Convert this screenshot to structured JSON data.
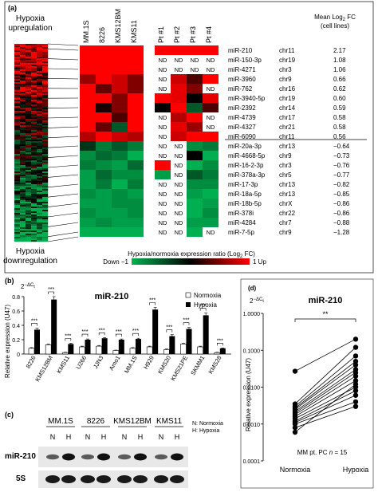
{
  "panel_a": {
    "label": "(a)",
    "up_label": [
      "Hypoxia",
      "upregulation"
    ],
    "down_label": [
      "Hypoxia",
      "downregulation"
    ],
    "columns": [
      "MM.1S",
      "8226",
      "KMS12BM",
      "KMS11",
      "Pt #1",
      "Pt #2",
      "Pt #3",
      "Pt #4"
    ],
    "fc_header": [
      "Mean Log",
      "2",
      " FC",
      "(cell lines)"
    ],
    "colorbar_title": "Hypoxia/normoxia expression ratio (Log",
    "colorbar_title_sub": "2",
    "colorbar_title_end": " FC)",
    "colorbar_min": "Down −1",
    "colorbar_max": "1 Up",
    "nd": "ND",
    "rows": [
      {
        "mirna": "miR-210",
        "chr": "chr11",
        "fc": "2.17",
        "cells": [
          1,
          1,
          1,
          1,
          1,
          1,
          1,
          1
        ]
      },
      {
        "mirna": "miR-150-3p",
        "chr": "chr19",
        "fc": "1.08",
        "cells": [
          1,
          1,
          1,
          1,
          "ND",
          "ND",
          "ND",
          "ND"
        ]
      },
      {
        "mirna": "miR-4271",
        "chr": "chr3",
        "fc": "1.06",
        "cells": [
          1,
          1,
          1,
          1,
          "ND",
          "ND",
          "ND",
          "ND"
        ]
      },
      {
        "mirna": "miR-3960",
        "chr": "chr9",
        "fc": "0.66",
        "cells": [
          0.6,
          1,
          0.8,
          0.5,
          "ND",
          0.8,
          0.3,
          1
        ]
      },
      {
        "mirna": "miR-762",
        "chr": "chr16",
        "fc": "0.62",
        "cells": [
          1,
          0.4,
          0.8,
          0.5,
          "ND",
          0.9,
          0.5,
          "ND"
        ]
      },
      {
        "mirna": "miR-3940-5p",
        "chr": "chr19",
        "fc": "0.60",
        "cells": [
          1,
          1,
          0.5,
          1,
          1,
          0.9,
          0,
          0.9
        ]
      },
      {
        "mirna": "miR-2392",
        "chr": "chr14",
        "fc": "0.59",
        "cells": [
          1,
          0.1,
          0.5,
          1,
          0,
          1,
          -0.5,
          0.3
        ]
      },
      {
        "mirna": "miR-4739",
        "chr": "chr17",
        "fc": "0.58",
        "cells": [
          1,
          1,
          0.3,
          1,
          "ND",
          0.7,
          1,
          "ND"
        ]
      },
      {
        "mirna": "miR-4327",
        "chr": "chr21",
        "fc": "0.58",
        "cells": [
          1,
          0.4,
          -0.5,
          1,
          "ND",
          0.9,
          0.6,
          "ND"
        ]
      },
      {
        "mirna": "miR-6090",
        "chr": "chr11",
        "fc": "0.56",
        "cells": [
          0.7,
          1,
          0.8,
          0.7,
          "ND",
          0.8,
          1,
          1
        ]
      },
      {
        "mirna": "miR-20a-3p",
        "chr": "chr13",
        "fc": "−0.64",
        "cells": [
          -0.3,
          -0.7,
          -0.5,
          -0.7,
          "ND",
          "ND",
          -0.8,
          -0.7
        ]
      },
      {
        "mirna": "miR-4668-5p",
        "chr": "chr9",
        "fc": "−0.73",
        "cells": [
          -0.8,
          -0.6,
          -0.7,
          -1,
          "ND",
          "ND",
          0,
          -1
        ]
      },
      {
        "mirna": "miR-16-2-3p",
        "chr": "chr3",
        "fc": "−0.76",
        "cells": [
          -0.7,
          -0.8,
          -0.9,
          -0.6,
          1,
          "ND",
          -1,
          -0.8
        ]
      },
      {
        "mirna": "miR-378a-3p",
        "chr": "chr5",
        "fc": "−0.77",
        "cells": [
          -0.9,
          -0.6,
          -0.8,
          -0.8,
          -0.9,
          "ND",
          -0.5,
          -0.7
        ]
      },
      {
        "mirna": "miR-17-3p",
        "chr": "chr13",
        "fc": "−0.82",
        "cells": [
          -0.9,
          -0.7,
          -1,
          -0.7,
          "ND",
          "ND",
          -0.8,
          -0.8
        ]
      },
      {
        "mirna": "miR-18a-5p",
        "chr": "chr13",
        "fc": "−0.85",
        "cells": [
          -0.8,
          -0.9,
          -0.8,
          -0.9,
          "ND",
          "ND",
          -0.9,
          -1
        ]
      },
      {
        "mirna": "miR-18b-5p",
        "chr": "chrX",
        "fc": "−0.86",
        "cells": [
          -0.9,
          -0.9,
          -0.8,
          -0.8,
          "ND",
          "ND",
          -1,
          -0.9
        ]
      },
      {
        "mirna": "miR-378i",
        "chr": "chr22",
        "fc": "−0.86",
        "cells": [
          -0.8,
          -0.9,
          -0.9,
          -0.8,
          "ND",
          "ND",
          -1,
          -0.8
        ]
      },
      {
        "mirna": "miR-4284",
        "chr": "chr7",
        "fc": "−0.88",
        "cells": [
          -0.9,
          -0.8,
          -0.9,
          -0.9,
          "ND",
          "ND",
          -0.9,
          -0.9
        ]
      },
      {
        "mirna": "miR-7-5p",
        "chr": "chr9",
        "fc": "−1.28",
        "cells": [
          -1,
          -1,
          -1,
          -1,
          "ND",
          "ND",
          -1,
          "ND"
        ]
      }
    ]
  },
  "panel_b": {
    "label": "(b)",
    "title": "miR-210",
    "y_unit": "2",
    "y_unit_sup": "−ΔC",
    "y_unit_sub": "t",
    "ylabel": "Relative expression (U47)",
    "legend": [
      "Normoxia",
      "Hypoxia"
    ],
    "sig": "***"
  },
  "panel_c": {
    "label": "(c)",
    "groups": [
      "MM.1S",
      "8226",
      "KMS12BM",
      "KMS11"
    ],
    "lanes": [
      "N",
      "H"
    ],
    "legend": [
      "N: Normoxia",
      "H: Hypoxia"
    ],
    "rows": [
      "miR-210",
      "5S"
    ]
  },
  "panel_d": {
    "label": "(d)",
    "title": "miR-210",
    "y_unit": "2",
    "y_unit_sup": "−ΔC",
    "y_unit_sub": "t",
    "ylabel": "Relative expression (U47)",
    "sig": "**",
    "annotation_prefix": "MM pt. PC ",
    "annotation_n": "n",
    "annotation_suffix": " = 15"
  },
  "chart_data": [
    {
      "type": "bar",
      "title": "miR-210",
      "ylabel": "Relative expression (U47)",
      "ylim": [
        0,
        0.8
      ],
      "yticks": [
        "0",
        "0.2",
        "0.4",
        "0.6",
        "0.8"
      ],
      "categories": [
        "8226",
        "KMS12BM",
        "KMS11",
        "U266",
        "JJN3",
        "Amo1",
        "MM.1S",
        "H929",
        "KMS20",
        "KMS21PE",
        "SKMM1",
        "KMS28"
      ],
      "series": [
        {
          "name": "Normoxia",
          "values": [
            0.08,
            0.13,
            0.02,
            0.1,
            0.11,
            0.05,
            0.08,
            0.1,
            0.06,
            0.14,
            0.1,
            0.02
          ],
          "errors": [
            0.01,
            0.01,
            0.005,
            0.01,
            0.01,
            0.005,
            0.01,
            0.01,
            0.01,
            0.01,
            0.01,
            0.005
          ]
        },
        {
          "name": "Hypoxia",
          "values": [
            0.34,
            0.76,
            0.14,
            0.2,
            0.22,
            0.2,
            0.21,
            0.62,
            0.25,
            0.35,
            0.54,
            0.08
          ],
          "errors": [
            0.02,
            0.04,
            0.01,
            0.01,
            0.01,
            0.01,
            0.01,
            0.03,
            0.02,
            0.02,
            0.03,
            0.005
          ]
        }
      ]
    },
    {
      "type": "scatter",
      "title": "miR-210",
      "ylabel": "Relative expression (U47)",
      "yscale": "log",
      "ylim": [
        0.0001,
        1
      ],
      "yticks": [
        "0.0001",
        "0.0010",
        "0.0100",
        "0.1000",
        "1.0000"
      ],
      "categories": [
        "Normoxia",
        "Hypoxia"
      ],
      "series": [
        {
          "name": "Normoxia",
          "values": [
            0.027,
            0.0035,
            0.003,
            0.0027,
            0.0025,
            0.0022,
            0.002,
            0.0018,
            0.0016,
            0.0014,
            0.0012,
            0.0011,
            0.001,
            0.0008,
            0.0006
          ]
        },
        {
          "name": "Hypoxia",
          "values": [
            0.2,
            0.12,
            0.07,
            0.05,
            0.04,
            0.03,
            0.025,
            0.02,
            0.015,
            0.01,
            0.008,
            0.006,
            0.004,
            0.003,
            0.012
          ]
        }
      ]
    }
  ]
}
